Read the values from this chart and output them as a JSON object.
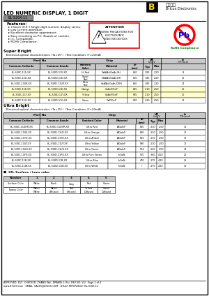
{
  "title_main": "LED NUMERIC DISPLAY, 1 DIGIT",
  "part_number": "BL-S30X-11",
  "company_cn": "百沃光电",
  "company_en": "BriLux Electronics",
  "features": [
    "7.6mm (0.3\") Single digit numeric display series.",
    "Low current operation.",
    "Excellent character appearance.",
    "Easy mounting on P.C. Boards or sockets.",
    "I.C. Compatible.",
    "ROHS Compliance."
  ],
  "super_bright_title": "Super Bright",
  "super_bright_subtitle": "   Electrical-optical characteristics: (Ta=25°)  (Test Condition: IF=20mA)",
  "sb_rows": [
    [
      "BL-S30C-115-XX",
      "BL-S30D-115-XX",
      "Hi Red",
      "GaAlAs/GaAs,SH",
      "660",
      "1.85",
      "2.20",
      "8"
    ],
    [
      "BL-S30C-11D-XX",
      "BL-S30D-11D-XX",
      "Super\nRed",
      "GaAlAs/GaAs,DH",
      "660",
      "1.85",
      "2.20",
      "12"
    ],
    [
      "BL-S30C-11UR-XX",
      "BL-S30D-11UR-XX",
      "Ultra\nRed",
      "GaAlAs/GaAs,DDH",
      "660",
      "1.85",
      "2.20",
      "14"
    ],
    [
      "BL-S30C-11E-XX",
      "BL-S30D-11E-XX",
      "Orange",
      "GaAsP/GaP",
      "635",
      "2.10",
      "2.50",
      "10"
    ],
    [
      "BL-S30C-11Y-XX",
      "BL-S30D-11Y-XX",
      "Yellow",
      "GaAsP/GaP",
      "585",
      "2.10",
      "2.50",
      "10"
    ],
    [
      "BL-S30C-11G-XX",
      "BL-S30D-11G-XX",
      "Green",
      "GaP/GaP",
      "570",
      "2.20",
      "2.50",
      "10"
    ]
  ],
  "sb_highlight": [
    false,
    false,
    false,
    true,
    true,
    false
  ],
  "ultra_bright_title": "Ultra Bright",
  "ultra_bright_subtitle": "   Electrical-optical characteristics: (Ta=25°)  (Test Condition: IF=20mA)",
  "ub_rows": [
    [
      "BL-S30C-11UHR-XX",
      "BL-S30D-11UHR-XX",
      "Ultra Red",
      "AlGaInP",
      "645",
      "2.10",
      "2.50",
      "14"
    ],
    [
      "BL-S30C-11UE-XX",
      "BL-S30D-11UE-XX",
      "Ultra Orange",
      "AlGaInP",
      "630",
      "2.10",
      "2.50",
      "12"
    ],
    [
      "BL-S30C-11YO-XX",
      "BL-S30D-11YO-XX",
      "Ultra Amber",
      "AlGaInP",
      "619",
      "2.10",
      "2.50",
      "12"
    ],
    [
      "BL-S30C-11UY-XX",
      "BL-S30D-11UY-XX",
      "Ultra Yellow",
      "AlGaInP",
      "590",
      "2.10",
      "2.50",
      "12"
    ],
    [
      "BL-S30C-11UG-XX",
      "BL-S30D-11UG-XX",
      "Ultra Green",
      "AlGaInP",
      "574",
      "2.20",
      "2.50",
      "14"
    ],
    [
      "BL-S30C-11PG-XX",
      "BL-S30D-11PG-XX",
      "Ultra Pure Green",
      "InGaN",
      "525",
      "3.60",
      "4.50",
      "22"
    ],
    [
      "BL-S30C-11B-XX",
      "BL-S30D-11B-XX",
      "Ultra Blue",
      "InGaN",
      "470",
      "2.75",
      "4.20",
      "25"
    ],
    [
      "BL-S30C-11W-XX",
      "BL-S30D-11W-XX",
      "Ultra White",
      "InGaN",
      "/",
      "2.75",
      "4.20",
      "30"
    ]
  ],
  "number_legend_title": "■  XX: Surface / Lens color",
  "number_headers": [
    "Number",
    "1",
    "2",
    "3",
    "4",
    "5"
  ],
  "number_rows": [
    [
      "Surface Color",
      "White",
      "Black",
      "Gray",
      "Red",
      "Green"
    ],
    [
      "Epoxy Color",
      "Water\nWhite",
      "White\ndiffused",
      "Red\ndiffused",
      "Yellow\nDiffused",
      "Green\nDiffused"
    ]
  ],
  "footer1": "APPROVED: XU1  CHECKED: ZHANG Wei  DRAWN: LI Fei  REV NO: V.2   Page 1 of 4",
  "footer2": "www.BTLUX.com   EMAIL: SALES@BTLUX.COM   BTLUX REFERENCE: BL-S30X-11",
  "bg_color": "#ffffff"
}
